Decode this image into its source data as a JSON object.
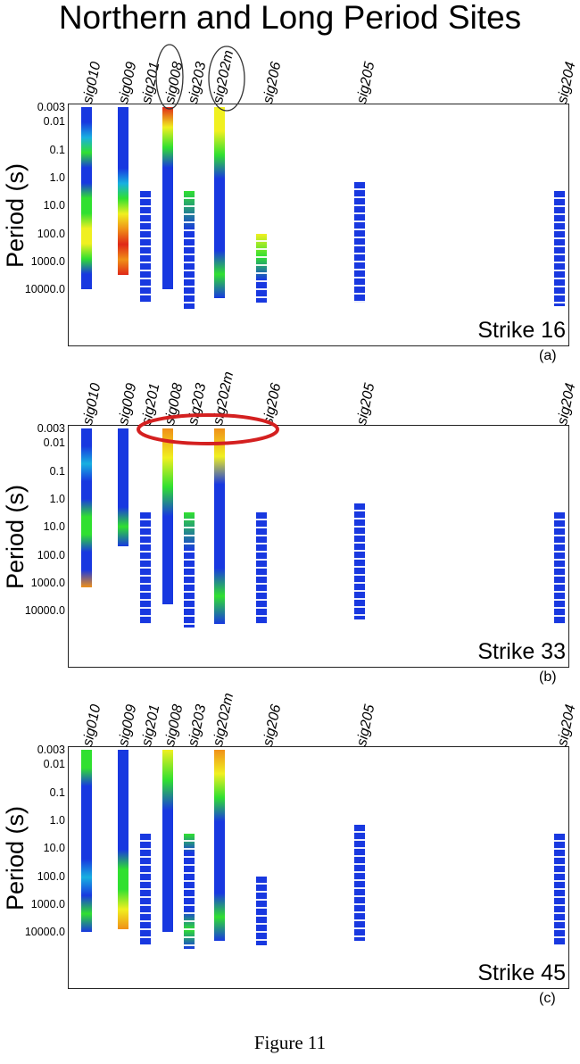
{
  "title": "Northern and Long Period Sites",
  "caption": "Figure 11",
  "y_axis_label": "Period (s)",
  "y_ticks": [
    "0.003",
    "0.01",
    "0.1",
    "1.0",
    "10.0",
    "100.0",
    "1000.0",
    "10000.0"
  ],
  "sites": [
    "sig010",
    "sig009",
    "sig201",
    "sig008",
    "sig203",
    "sig202m",
    "sig206",
    "sig205",
    "sig204"
  ],
  "colors": {
    "blue": "#1838e0",
    "cyan": "#18b0e0",
    "green": "#30e030",
    "yellow": "#f0f020",
    "orange": "#f09018",
    "red": "#e02818"
  },
  "panels": [
    {
      "strike_label": "Strike 16",
      "panel_label": "(a)",
      "highlight": "circles around sig008 and sig202m",
      "columns": [
        {
          "site": "sig010",
          "from": 0.003,
          "to": 10000,
          "colors": [
            "blue",
            "blue",
            "cyan",
            "green",
            "blue",
            "blue",
            "green",
            "green",
            "yellow",
            "yellow",
            "green",
            "blue",
            "blue"
          ]
        },
        {
          "site": "sig009",
          "from": 0.003,
          "to": 3000,
          "colors": [
            "blue",
            "blue",
            "blue",
            "blue",
            "blue",
            "cyan",
            "green",
            "yellow",
            "orange",
            "red",
            "orange",
            "red"
          ]
        },
        {
          "site": "sig201",
          "from": 3,
          "to": 30000,
          "colors": [
            "blue"
          ]
        },
        {
          "site": "sig008",
          "from": 0.003,
          "to": 10000,
          "colors": [
            "red",
            "yellow",
            "green",
            "blue",
            "blue",
            "blue",
            "blue",
            "blue",
            "blue",
            "blue"
          ]
        },
        {
          "site": "sig203",
          "from": 3,
          "to": 50000,
          "colors": [
            "green",
            "blue",
            "blue",
            "blue"
          ]
        },
        {
          "site": "sig202m",
          "from": 0.003,
          "to": 20000,
          "colors": [
            "yellow",
            "yellow",
            "green",
            "blue",
            "blue",
            "blue",
            "blue",
            "green",
            "blue"
          ]
        },
        {
          "site": "sig206",
          "from": 100,
          "to": 30000,
          "colors": [
            "yellow",
            "green",
            "blue",
            "blue"
          ]
        },
        {
          "site": "sig205",
          "from": 1.5,
          "to": 30000,
          "colors": [
            "blue"
          ]
        },
        {
          "site": "sig204",
          "from": 3,
          "to": 40000,
          "colors": [
            "blue"
          ]
        }
      ]
    },
    {
      "strike_label": "Strike 33",
      "panel_label": "(b)",
      "highlight": "ellipse around sig008 to sig202m",
      "columns": [
        {
          "site": "sig010",
          "from": 0.003,
          "to": 1500,
          "colors": [
            "blue",
            "blue",
            "cyan",
            "blue",
            "blue",
            "green",
            "green",
            "blue",
            "blue",
            "orange"
          ]
        },
        {
          "site": "sig009",
          "from": 0.003,
          "to": 50,
          "colors": [
            "blue",
            "blue",
            "blue",
            "blue",
            "blue",
            "green",
            "blue"
          ]
        },
        {
          "site": "sig201",
          "from": 3,
          "to": 30000,
          "colors": [
            "blue"
          ]
        },
        {
          "site": "sig008",
          "from": 0.003,
          "to": 6000,
          "colors": [
            "orange",
            "yellow",
            "green",
            "blue",
            "blue",
            "blue",
            "blue"
          ]
        },
        {
          "site": "sig203",
          "from": 3,
          "to": 40000,
          "colors": [
            "green",
            "blue",
            "blue",
            "blue"
          ]
        },
        {
          "site": "sig202m",
          "from": 0.003,
          "to": 30000,
          "colors": [
            "orange",
            "yellow",
            "blue",
            "blue",
            "blue",
            "blue",
            "green",
            "blue"
          ]
        },
        {
          "site": "sig206",
          "from": 3,
          "to": 30000,
          "colors": [
            "blue"
          ]
        },
        {
          "site": "sig205",
          "from": 1.5,
          "to": 20000,
          "colors": [
            "blue"
          ]
        },
        {
          "site": "sig204",
          "from": 3,
          "to": 30000,
          "colors": [
            "blue"
          ]
        }
      ]
    },
    {
      "strike_label": "Strike 45",
      "panel_label": "(c)",
      "highlight": "",
      "columns": [
        {
          "site": "sig010",
          "from": 0.003,
          "to": 10000,
          "colors": [
            "green",
            "green",
            "blue",
            "blue",
            "blue",
            "blue",
            "blue",
            "cyan",
            "blue",
            "green",
            "blue"
          ]
        },
        {
          "site": "sig009",
          "from": 0.003,
          "to": 8000,
          "colors": [
            "blue",
            "blue",
            "blue",
            "blue",
            "blue",
            "blue",
            "green",
            "green",
            "yellow",
            "orange"
          ]
        },
        {
          "site": "sig201",
          "from": 3,
          "to": 30000,
          "colors": [
            "blue"
          ]
        },
        {
          "site": "sig008",
          "from": 0.003,
          "to": 10000,
          "colors": [
            "yellow",
            "green",
            "blue",
            "blue",
            "blue",
            "blue",
            "blue"
          ]
        },
        {
          "site": "sig203",
          "from": 3,
          "to": 40000,
          "colors": [
            "green",
            "blue",
            "blue",
            "blue",
            "blue",
            "green",
            "blue"
          ]
        },
        {
          "site": "sig202m",
          "from": 0.003,
          "to": 20000,
          "colors": [
            "orange",
            "yellow",
            "green",
            "blue",
            "blue",
            "blue",
            "blue",
            "green",
            "blue"
          ]
        },
        {
          "site": "sig206",
          "from": 100,
          "to": 30000,
          "colors": [
            "blue"
          ]
        },
        {
          "site": "sig205",
          "from": 1.5,
          "to": 20000,
          "colors": [
            "blue"
          ]
        },
        {
          "site": "sig204",
          "from": 3,
          "to": 30000,
          "colors": [
            "blue"
          ]
        }
      ]
    }
  ]
}
